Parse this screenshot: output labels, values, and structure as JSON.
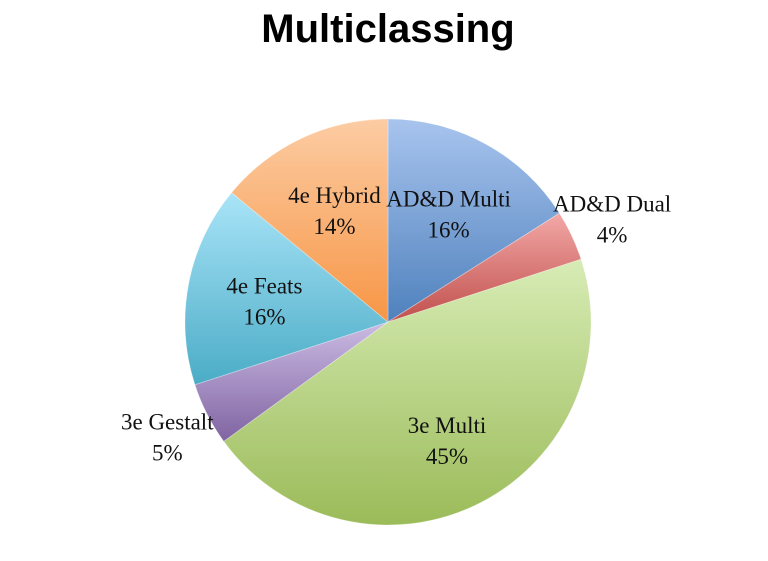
{
  "chart_data": {
    "type": "pie",
    "title": "Multiclassing",
    "slices": [
      {
        "label": "AD&D Multi",
        "value": 16,
        "pct_label": "16%",
        "color": "#4f81bd",
        "light": "#a8c4ee"
      },
      {
        "label": "AD&D Dual",
        "value": 4,
        "pct_label": "4%",
        "color": "#c0504d",
        "light": "#f3a8a6"
      },
      {
        "label": "3e Multi",
        "value": 45,
        "pct_label": "45%",
        "color": "#9bbb59",
        "light": "#d7ecb5"
      },
      {
        "label": "3e Gestalt",
        "value": 5,
        "pct_label": "5%",
        "color": "#8064a2",
        "light": "#cbbbe3"
      },
      {
        "label": "4e Feats",
        "value": 16,
        "pct_label": "16%",
        "color": "#4bacc6",
        "light": "#a9e4f8"
      },
      {
        "label": "4e Hybrid",
        "value": 14,
        "pct_label": "14%",
        "color": "#f79646",
        "light": "#fccca3"
      }
    ],
    "start_angle": "12 o'clock",
    "direction": "clockwise",
    "legend": "none"
  }
}
